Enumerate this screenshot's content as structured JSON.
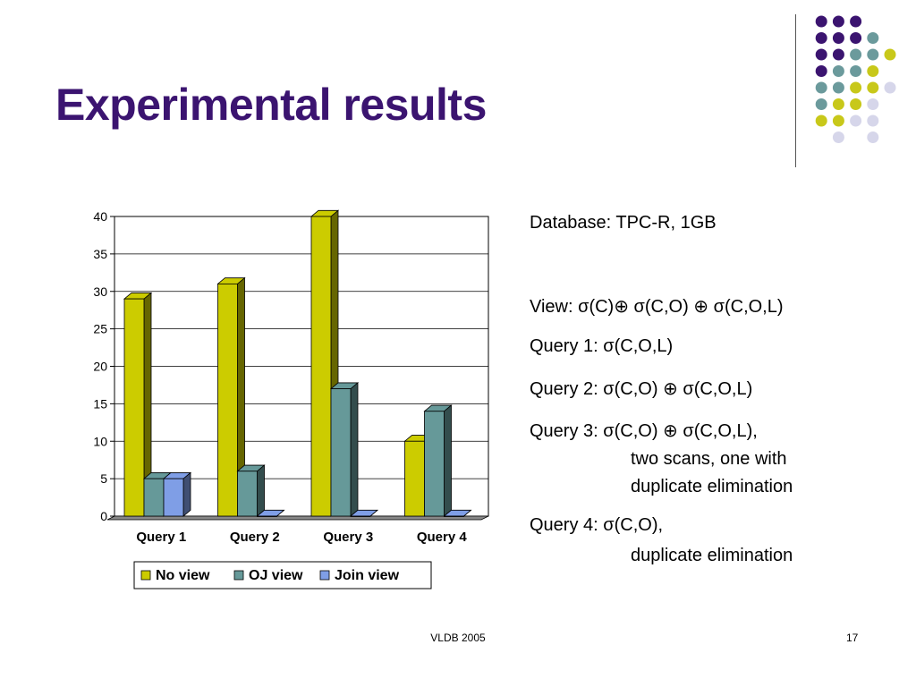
{
  "slide": {
    "title": "Experimental results",
    "footer_left": "VLDB 2005",
    "slide_number": "17"
  },
  "theme": {
    "title_color": "#3b1470",
    "dot_colors": {
      "purple": "#3b1470",
      "teal": "#6b9a9c",
      "yellow": "#c8c81a",
      "lavender": "#d6d6ea"
    }
  },
  "info": {
    "database": "Database: TPC-R, 1GB",
    "view": "View: σ(C)⊕ σ(C,O) ⊕ σ(C,O,L)",
    "query1": "Query 1: σ(C,O,L)",
    "query2": "Query 2: σ(C,O) ⊕ σ(C,O,L)",
    "query3": "Query 3: σ(C,O) ⊕ σ(C,O,L),",
    "query3_cont1": "two scans, one with",
    "query3_cont2": "duplicate elimination",
    "query4": "Query 4: σ(C,O),",
    "query4_cont": "duplicate elimination"
  },
  "chart_data": {
    "type": "bar",
    "categories": [
      "Query 1",
      "Query 2",
      "Query 3",
      "Query 4"
    ],
    "series": [
      {
        "name": "No view",
        "values": [
          29,
          31,
          40,
          10
        ],
        "color": "#cccc00"
      },
      {
        "name": "OJ view",
        "values": [
          5,
          6,
          17,
          14
        ],
        "color": "#669999"
      },
      {
        "name": "Join view",
        "values": [
          5,
          0,
          0,
          0
        ],
        "color": "#7f9ee6"
      }
    ],
    "ylim": [
      0,
      40
    ],
    "yticks": [
      0,
      5,
      10,
      15,
      20,
      25,
      30,
      35,
      40
    ],
    "grid": true,
    "legend": "bottom",
    "style": "3d-clustered"
  }
}
